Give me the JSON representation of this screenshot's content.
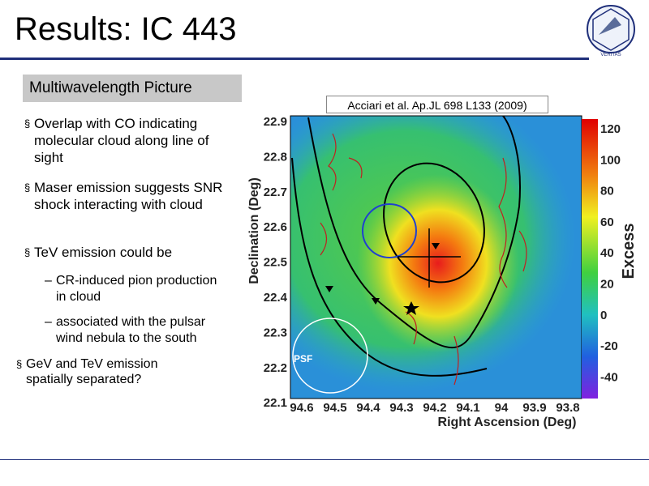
{
  "header": {
    "title": "Results: IC 443",
    "logo_text": "VERITAS"
  },
  "section_label": "Multiwavelength Picture",
  "citation": "Acciari et al. Ap.JL 698 L133 (2009)",
  "bullets": [
    {
      "text": "Overlap with CO indicating molecular cloud along line of sight"
    },
    {
      "text": "Maser emission suggests SNR shock interacting with cloud"
    },
    {
      "text": "TeV emission could be",
      "sub": [
        "CR-induced pion production in cloud",
        "associated with the pulsar wind nebula to the south"
      ]
    },
    {
      "text": "GeV and TeV emission spatially separated?"
    }
  ],
  "figure": {
    "y_label": "Declination (Deg)",
    "x_label": "Right Ascension (Deg)",
    "yticks": [
      "22.9",
      "22.8",
      "22.7",
      "22.6",
      "22.5",
      "22.4",
      "22.3",
      "22.2",
      "22.1"
    ],
    "xticks": [
      "94.6",
      "94.5",
      "94.4",
      "94.3",
      "94.2",
      "94.1",
      "94",
      "93.9",
      "93.8"
    ],
    "colorbar_label": "Excess",
    "colorbar_ticks": [
      "120",
      "100",
      "80",
      "60",
      "40",
      "20",
      "0",
      "-20",
      "-40"
    ],
    "psf_label": "PSF"
  }
}
